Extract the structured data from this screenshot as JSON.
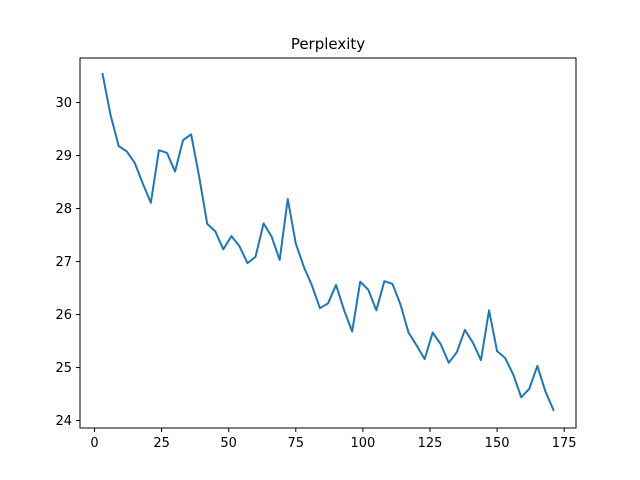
{
  "chart_data": {
    "type": "line",
    "title": "Perplexity",
    "xlabel": "",
    "ylabel": "",
    "xlim": [
      -5.4,
      179.4
    ],
    "ylim": [
      23.86,
      30.84
    ],
    "xticks": [
      0,
      25,
      50,
      75,
      100,
      125,
      150,
      175
    ],
    "yticks": [
      24,
      25,
      26,
      27,
      28,
      29,
      30
    ],
    "grid": false,
    "legend": "none",
    "series": [
      {
        "color": "#1f77b4",
        "x": [
          3,
          6,
          9,
          12,
          15,
          18,
          21,
          24,
          27,
          30,
          33,
          36,
          39,
          42,
          45,
          48,
          51,
          54,
          57,
          60,
          63,
          66,
          69,
          72,
          75,
          78,
          81,
          84,
          87,
          90,
          93,
          96,
          99,
          102,
          105,
          108,
          111,
          114,
          117,
          120,
          123,
          126,
          129,
          132,
          135,
          138,
          141,
          144,
          147,
          150,
          153,
          156,
          159,
          162,
          165,
          168,
          171
        ],
        "y": [
          30.54,
          29.76,
          29.18,
          29.08,
          28.86,
          28.47,
          28.11,
          29.1,
          29.05,
          28.7,
          29.29,
          29.4,
          28.6,
          27.71,
          27.57,
          27.23,
          27.48,
          27.29,
          26.97,
          27.09,
          27.72,
          27.47,
          27.03,
          28.18,
          27.34,
          26.9,
          26.55,
          26.12,
          26.21,
          26.56,
          26.08,
          25.68,
          26.62,
          26.47,
          26.08,
          26.63,
          26.58,
          26.19,
          25.66,
          25.42,
          25.16,
          25.66,
          25.44,
          25.09,
          25.29,
          25.71,
          25.47,
          25.14,
          26.08,
          25.31,
          25.18,
          24.87,
          24.44,
          24.6,
          25.03,
          24.55,
          24.2
        ]
      }
    ]
  }
}
